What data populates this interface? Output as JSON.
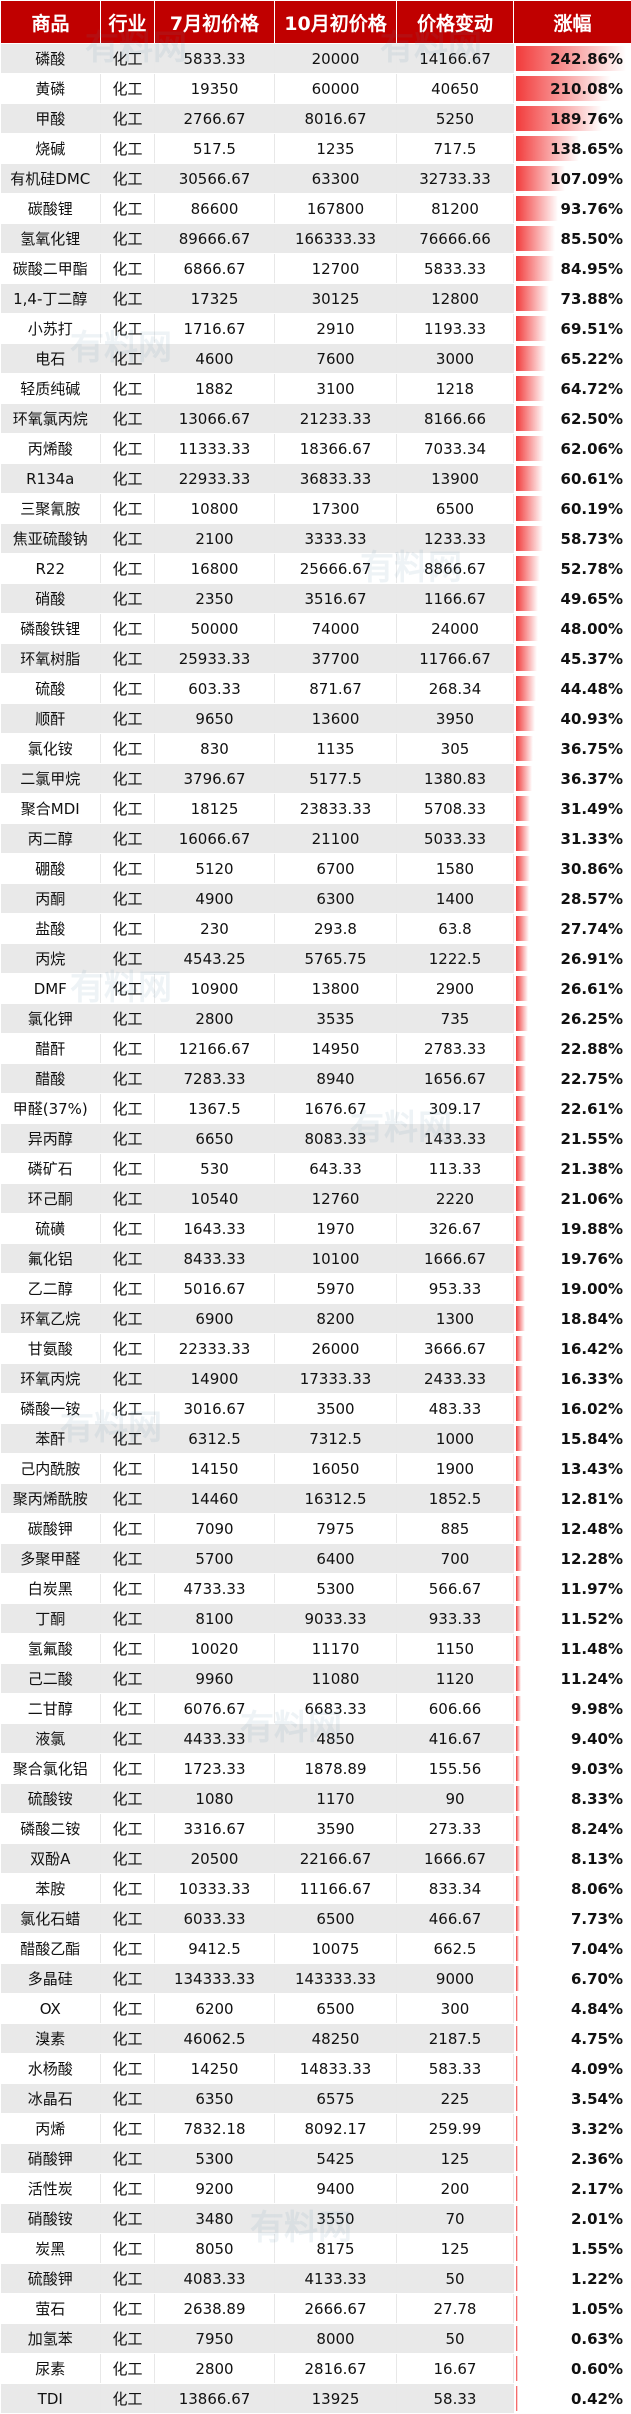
{
  "colors": {
    "header_bg": "#c00000",
    "bar_start": "#ffffff",
    "bar_end": "#f23b3b"
  },
  "columns": [
    "商品",
    "行业",
    "7月初价格",
    "10月初价格",
    "价格变动",
    "涨幅"
  ],
  "watermark_text": "有料网",
  "rows": [
    {
      "name": "磷酸",
      "industry": "化工",
      "jul": "5833.33",
      "oct": "20000",
      "change": "14166.67",
      "pct": "242.86%",
      "pct_value": 242.86
    },
    {
      "name": "黄磷",
      "industry": "化工",
      "jul": "19350",
      "oct": "60000",
      "change": "40650",
      "pct": "210.08%",
      "pct_value": 210.08
    },
    {
      "name": "甲酸",
      "industry": "化工",
      "jul": "2766.67",
      "oct": "8016.67",
      "change": "5250",
      "pct": "189.76%",
      "pct_value": 189.76
    },
    {
      "name": "烧碱",
      "industry": "化工",
      "jul": "517.5",
      "oct": "1235",
      "change": "717.5",
      "pct": "138.65%",
      "pct_value": 138.65
    },
    {
      "name": "有机硅DMC",
      "industry": "化工",
      "jul": "30566.67",
      "oct": "63300",
      "change": "32733.33",
      "pct": "107.09%",
      "pct_value": 107.09
    },
    {
      "name": "碳酸锂",
      "industry": "化工",
      "jul": "86600",
      "oct": "167800",
      "change": "81200",
      "pct": "93.76%",
      "pct_value": 93.76
    },
    {
      "name": "氢氧化锂",
      "industry": "化工",
      "jul": "89666.67",
      "oct": "166333.33",
      "change": "76666.66",
      "pct": "85.50%",
      "pct_value": 85.5
    },
    {
      "name": "碳酸二甲酯",
      "industry": "化工",
      "jul": "6866.67",
      "oct": "12700",
      "change": "5833.33",
      "pct": "84.95%",
      "pct_value": 84.95
    },
    {
      "name": "1,4-丁二醇",
      "industry": "化工",
      "jul": "17325",
      "oct": "30125",
      "change": "12800",
      "pct": "73.88%",
      "pct_value": 73.88
    },
    {
      "name": "小苏打",
      "industry": "化工",
      "jul": "1716.67",
      "oct": "2910",
      "change": "1193.33",
      "pct": "69.51%",
      "pct_value": 69.51
    },
    {
      "name": "电石",
      "industry": "化工",
      "jul": "4600",
      "oct": "7600",
      "change": "3000",
      "pct": "65.22%",
      "pct_value": 65.22
    },
    {
      "name": "轻质纯碱",
      "industry": "化工",
      "jul": "1882",
      "oct": "3100",
      "change": "1218",
      "pct": "64.72%",
      "pct_value": 64.72
    },
    {
      "name": "环氧氯丙烷",
      "industry": "化工",
      "jul": "13066.67",
      "oct": "21233.33",
      "change": "8166.66",
      "pct": "62.50%",
      "pct_value": 62.5
    },
    {
      "name": "丙烯酸",
      "industry": "化工",
      "jul": "11333.33",
      "oct": "18366.67",
      "change": "7033.34",
      "pct": "62.06%",
      "pct_value": 62.06
    },
    {
      "name": "R134a",
      "industry": "化工",
      "jul": "22933.33",
      "oct": "36833.33",
      "change": "13900",
      "pct": "60.61%",
      "pct_value": 60.61
    },
    {
      "name": "三聚氰胺",
      "industry": "化工",
      "jul": "10800",
      "oct": "17300",
      "change": "6500",
      "pct": "60.19%",
      "pct_value": 60.19
    },
    {
      "name": "焦亚硫酸钠",
      "industry": "化工",
      "jul": "2100",
      "oct": "3333.33",
      "change": "1233.33",
      "pct": "58.73%",
      "pct_value": 58.73
    },
    {
      "name": "R22",
      "industry": "化工",
      "jul": "16800",
      "oct": "25666.67",
      "change": "8866.67",
      "pct": "52.78%",
      "pct_value": 52.78
    },
    {
      "name": "硝酸",
      "industry": "化工",
      "jul": "2350",
      "oct": "3516.67",
      "change": "1166.67",
      "pct": "49.65%",
      "pct_value": 49.65
    },
    {
      "name": "磷酸铁锂",
      "industry": "化工",
      "jul": "50000",
      "oct": "74000",
      "change": "24000",
      "pct": "48.00%",
      "pct_value": 48.0
    },
    {
      "name": "环氧树脂",
      "industry": "化工",
      "jul": "25933.33",
      "oct": "37700",
      "change": "11766.67",
      "pct": "45.37%",
      "pct_value": 45.37
    },
    {
      "name": "硫酸",
      "industry": "化工",
      "jul": "603.33",
      "oct": "871.67",
      "change": "268.34",
      "pct": "44.48%",
      "pct_value": 44.48
    },
    {
      "name": "顺酐",
      "industry": "化工",
      "jul": "9650",
      "oct": "13600",
      "change": "3950",
      "pct": "40.93%",
      "pct_value": 40.93
    },
    {
      "name": "氯化铵",
      "industry": "化工",
      "jul": "830",
      "oct": "1135",
      "change": "305",
      "pct": "36.75%",
      "pct_value": 36.75
    },
    {
      "name": "二氯甲烷",
      "industry": "化工",
      "jul": "3796.67",
      "oct": "5177.5",
      "change": "1380.83",
      "pct": "36.37%",
      "pct_value": 36.37
    },
    {
      "name": "聚合MDI",
      "industry": "化工",
      "jul": "18125",
      "oct": "23833.33",
      "change": "5708.33",
      "pct": "31.49%",
      "pct_value": 31.49
    },
    {
      "name": "丙二醇",
      "industry": "化工",
      "jul": "16066.67",
      "oct": "21100",
      "change": "5033.33",
      "pct": "31.33%",
      "pct_value": 31.33
    },
    {
      "name": "硼酸",
      "industry": "化工",
      "jul": "5120",
      "oct": "6700",
      "change": "1580",
      "pct": "30.86%",
      "pct_value": 30.86
    },
    {
      "name": "丙酮",
      "industry": "化工",
      "jul": "4900",
      "oct": "6300",
      "change": "1400",
      "pct": "28.57%",
      "pct_value": 28.57
    },
    {
      "name": "盐酸",
      "industry": "化工",
      "jul": "230",
      "oct": "293.8",
      "change": "63.8",
      "pct": "27.74%",
      "pct_value": 27.74
    },
    {
      "name": "丙烷",
      "industry": "化工",
      "jul": "4543.25",
      "oct": "5765.75",
      "change": "1222.5",
      "pct": "26.91%",
      "pct_value": 26.91
    },
    {
      "name": "DMF",
      "industry": "化工",
      "jul": "10900",
      "oct": "13800",
      "change": "2900",
      "pct": "26.61%",
      "pct_value": 26.61
    },
    {
      "name": "氯化钾",
      "industry": "化工",
      "jul": "2800",
      "oct": "3535",
      "change": "735",
      "pct": "26.25%",
      "pct_value": 26.25
    },
    {
      "name": "醋酐",
      "industry": "化工",
      "jul": "12166.67",
      "oct": "14950",
      "change": "2783.33",
      "pct": "22.88%",
      "pct_value": 22.88
    },
    {
      "name": "醋酸",
      "industry": "化工",
      "jul": "7283.33",
      "oct": "8940",
      "change": "1656.67",
      "pct": "22.75%",
      "pct_value": 22.75
    },
    {
      "name": "甲醛(37%)",
      "industry": "化工",
      "jul": "1367.5",
      "oct": "1676.67",
      "change": "309.17",
      "pct": "22.61%",
      "pct_value": 22.61
    },
    {
      "name": "异丙醇",
      "industry": "化工",
      "jul": "6650",
      "oct": "8083.33",
      "change": "1433.33",
      "pct": "21.55%",
      "pct_value": 21.55
    },
    {
      "name": "磷矿石",
      "industry": "化工",
      "jul": "530",
      "oct": "643.33",
      "change": "113.33",
      "pct": "21.38%",
      "pct_value": 21.38
    },
    {
      "name": "环己酮",
      "industry": "化工",
      "jul": "10540",
      "oct": "12760",
      "change": "2220",
      "pct": "21.06%",
      "pct_value": 21.06
    },
    {
      "name": "硫磺",
      "industry": "化工",
      "jul": "1643.33",
      "oct": "1970",
      "change": "326.67",
      "pct": "19.88%",
      "pct_value": 19.88
    },
    {
      "name": "氟化铝",
      "industry": "化工",
      "jul": "8433.33",
      "oct": "10100",
      "change": "1666.67",
      "pct": "19.76%",
      "pct_value": 19.76
    },
    {
      "name": "乙二醇",
      "industry": "化工",
      "jul": "5016.67",
      "oct": "5970",
      "change": "953.33",
      "pct": "19.00%",
      "pct_value": 19.0
    },
    {
      "name": "环氧乙烷",
      "industry": "化工",
      "jul": "6900",
      "oct": "8200",
      "change": "1300",
      "pct": "18.84%",
      "pct_value": 18.84
    },
    {
      "name": "甘氨酸",
      "industry": "化工",
      "jul": "22333.33",
      "oct": "26000",
      "change": "3666.67",
      "pct": "16.42%",
      "pct_value": 16.42
    },
    {
      "name": "环氧丙烷",
      "industry": "化工",
      "jul": "14900",
      "oct": "17333.33",
      "change": "2433.33",
      "pct": "16.33%",
      "pct_value": 16.33
    },
    {
      "name": "磷酸一铵",
      "industry": "化工",
      "jul": "3016.67",
      "oct": "3500",
      "change": "483.33",
      "pct": "16.02%",
      "pct_value": 16.02
    },
    {
      "name": "苯酐",
      "industry": "化工",
      "jul": "6312.5",
      "oct": "7312.5",
      "change": "1000",
      "pct": "15.84%",
      "pct_value": 15.84
    },
    {
      "name": "己内酰胺",
      "industry": "化工",
      "jul": "14150",
      "oct": "16050",
      "change": "1900",
      "pct": "13.43%",
      "pct_value": 13.43
    },
    {
      "name": "聚丙烯酰胺",
      "industry": "化工",
      "jul": "14460",
      "oct": "16312.5",
      "change": "1852.5",
      "pct": "12.81%",
      "pct_value": 12.81
    },
    {
      "name": "碳酸钾",
      "industry": "化工",
      "jul": "7090",
      "oct": "7975",
      "change": "885",
      "pct": "12.48%",
      "pct_value": 12.48
    },
    {
      "name": "多聚甲醛",
      "industry": "化工",
      "jul": "5700",
      "oct": "6400",
      "change": "700",
      "pct": "12.28%",
      "pct_value": 12.28
    },
    {
      "name": "白炭黑",
      "industry": "化工",
      "jul": "4733.33",
      "oct": "5300",
      "change": "566.67",
      "pct": "11.97%",
      "pct_value": 11.97
    },
    {
      "name": "丁酮",
      "industry": "化工",
      "jul": "8100",
      "oct": "9033.33",
      "change": "933.33",
      "pct": "11.52%",
      "pct_value": 11.52
    },
    {
      "name": "氢氟酸",
      "industry": "化工",
      "jul": "10020",
      "oct": "11170",
      "change": "1150",
      "pct": "11.48%",
      "pct_value": 11.48
    },
    {
      "name": "己二酸",
      "industry": "化工",
      "jul": "9960",
      "oct": "11080",
      "change": "1120",
      "pct": "11.24%",
      "pct_value": 11.24
    },
    {
      "name": "二甘醇",
      "industry": "化工",
      "jul": "6076.67",
      "oct": "6683.33",
      "change": "606.66",
      "pct": "9.98%",
      "pct_value": 9.98
    },
    {
      "name": "液氯",
      "industry": "化工",
      "jul": "4433.33",
      "oct": "4850",
      "change": "416.67",
      "pct": "9.40%",
      "pct_value": 9.4
    },
    {
      "name": "聚合氯化铝",
      "industry": "化工",
      "jul": "1723.33",
      "oct": "1878.89",
      "change": "155.56",
      "pct": "9.03%",
      "pct_value": 9.03
    },
    {
      "name": "硫酸铵",
      "industry": "化工",
      "jul": "1080",
      "oct": "1170",
      "change": "90",
      "pct": "8.33%",
      "pct_value": 8.33
    },
    {
      "name": "磷酸二铵",
      "industry": "化工",
      "jul": "3316.67",
      "oct": "3590",
      "change": "273.33",
      "pct": "8.24%",
      "pct_value": 8.24
    },
    {
      "name": "双酚A",
      "industry": "化工",
      "jul": "20500",
      "oct": "22166.67",
      "change": "1666.67",
      "pct": "8.13%",
      "pct_value": 8.13
    },
    {
      "name": "苯胺",
      "industry": "化工",
      "jul": "10333.33",
      "oct": "11166.67",
      "change": "833.34",
      "pct": "8.06%",
      "pct_value": 8.06
    },
    {
      "name": "氯化石蜡",
      "industry": "化工",
      "jul": "6033.33",
      "oct": "6500",
      "change": "466.67",
      "pct": "7.73%",
      "pct_value": 7.73
    },
    {
      "name": "醋酸乙酯",
      "industry": "化工",
      "jul": "9412.5",
      "oct": "10075",
      "change": "662.5",
      "pct": "7.04%",
      "pct_value": 7.04
    },
    {
      "name": "多晶硅",
      "industry": "化工",
      "jul": "134333.33",
      "oct": "143333.33",
      "change": "9000",
      "pct": "6.70%",
      "pct_value": 6.7
    },
    {
      "name": "OX",
      "industry": "化工",
      "jul": "6200",
      "oct": "6500",
      "change": "300",
      "pct": "4.84%",
      "pct_value": 4.84
    },
    {
      "name": "溴素",
      "industry": "化工",
      "jul": "46062.5",
      "oct": "48250",
      "change": "2187.5",
      "pct": "4.75%",
      "pct_value": 4.75
    },
    {
      "name": "水杨酸",
      "industry": "化工",
      "jul": "14250",
      "oct": "14833.33",
      "change": "583.33",
      "pct": "4.09%",
      "pct_value": 4.09
    },
    {
      "name": "冰晶石",
      "industry": "化工",
      "jul": "6350",
      "oct": "6575",
      "change": "225",
      "pct": "3.54%",
      "pct_value": 3.54
    },
    {
      "name": "丙烯",
      "industry": "化工",
      "jul": "7832.18",
      "oct": "8092.17",
      "change": "259.99",
      "pct": "3.32%",
      "pct_value": 3.32
    },
    {
      "name": "硝酸钾",
      "industry": "化工",
      "jul": "5300",
      "oct": "5425",
      "change": "125",
      "pct": "2.36%",
      "pct_value": 2.36
    },
    {
      "name": "活性炭",
      "industry": "化工",
      "jul": "9200",
      "oct": "9400",
      "change": "200",
      "pct": "2.17%",
      "pct_value": 2.17
    },
    {
      "name": "硝酸铵",
      "industry": "化工",
      "jul": "3480",
      "oct": "3550",
      "change": "70",
      "pct": "2.01%",
      "pct_value": 2.01
    },
    {
      "name": "炭黑",
      "industry": "化工",
      "jul": "8050",
      "oct": "8175",
      "change": "125",
      "pct": "1.55%",
      "pct_value": 1.55
    },
    {
      "name": "硫酸钾",
      "industry": "化工",
      "jul": "4083.33",
      "oct": "4133.33",
      "change": "50",
      "pct": "1.22%",
      "pct_value": 1.22
    },
    {
      "name": "萤石",
      "industry": "化工",
      "jul": "2638.89",
      "oct": "2666.67",
      "change": "27.78",
      "pct": "1.05%",
      "pct_value": 1.05
    },
    {
      "name": "加氢苯",
      "industry": "化工",
      "jul": "7950",
      "oct": "8000",
      "change": "50",
      "pct": "0.63%",
      "pct_value": 0.63
    },
    {
      "name": "尿素",
      "industry": "化工",
      "jul": "2800",
      "oct": "2816.67",
      "change": "16.67",
      "pct": "0.60%",
      "pct_value": 0.6
    },
    {
      "name": "TDI",
      "industry": "化工",
      "jul": "13866.67",
      "oct": "13925",
      "change": "58.33",
      "pct": "0.42%",
      "pct_value": 0.42
    }
  ]
}
